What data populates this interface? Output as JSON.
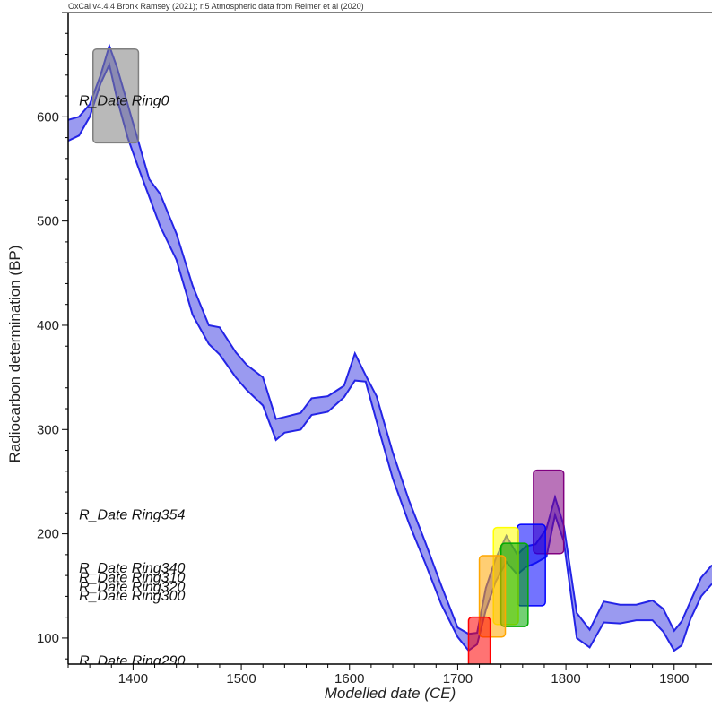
{
  "header": {
    "credit": "OxCal v4.4.4 Bronk Ramsey (2021); r:5 Atmospheric data from Reimer et al (2020)"
  },
  "chart_data": {
    "type": "area",
    "xlabel": "Modelled date (CE)",
    "ylabel": "Radiocarbon determination (BP)",
    "xlim": [
      1340,
      1935
    ],
    "ylim": [
      75,
      700
    ],
    "x_ticks": [
      1400,
      1500,
      1600,
      1700,
      1800,
      1900
    ],
    "y_ticks": [
      100,
      200,
      300,
      400,
      500,
      600
    ],
    "colors": {
      "curve_fill": "#9a9af0",
      "curve_line": "#2424e6"
    },
    "calibration_band": {
      "x": [
        1340,
        1350,
        1360,
        1370,
        1378,
        1385,
        1395,
        1405,
        1415,
        1425,
        1440,
        1455,
        1470,
        1480,
        1495,
        1505,
        1520,
        1532,
        1540,
        1555,
        1565,
        1580,
        1595,
        1605,
        1615,
        1625,
        1640,
        1655,
        1670,
        1685,
        1700,
        1710,
        1718,
        1726,
        1735,
        1745,
        1755,
        1763,
        1772,
        1782,
        1790,
        1798,
        1810,
        1822,
        1835,
        1850,
        1865,
        1880,
        1890,
        1900,
        1907,
        1915,
        1925,
        1935
      ],
      "upper": [
        597,
        600,
        612,
        640,
        668,
        648,
        612,
        576,
        540,
        526,
        488,
        438,
        400,
        398,
        374,
        362,
        350,
        310,
        312,
        316,
        330,
        332,
        342,
        373,
        352,
        332,
        278,
        232,
        192,
        150,
        110,
        104,
        105,
        148,
        176,
        198,
        180,
        188,
        190,
        205,
        235,
        208,
        124,
        108,
        135,
        132,
        132,
        136,
        128,
        107,
        116,
        135,
        158,
        170
      ],
      "lower": [
        577,
        582,
        600,
        632,
        650,
        618,
        580,
        551,
        523,
        495,
        463,
        410,
        382,
        372,
        350,
        338,
        323,
        290,
        297,
        300,
        314,
        317,
        331,
        347,
        346,
        308,
        253,
        210,
        172,
        132,
        101,
        88,
        94,
        127,
        154,
        173,
        161,
        168,
        172,
        178,
        218,
        193,
        100,
        91,
        115,
        114,
        117,
        117,
        106,
        88,
        93,
        118,
        140,
        152
      ]
    },
    "date_boxes": [
      {
        "name": "R_Date Ring0",
        "x": [
          1363,
          1405
        ],
        "y": [
          575,
          665
        ],
        "color": "#808080"
      },
      {
        "name": "R_Date Ring354",
        "x": [
          1770,
          1798
        ],
        "y": [
          181,
          261
        ],
        "color": "#800080"
      },
      {
        "name": "R_Date Ring340",
        "x": [
          1755,
          1781
        ],
        "y": [
          131,
          209
        ],
        "color": "#0000ff"
      },
      {
        "name": "R_Date Ring310",
        "x": [
          1733,
          1756
        ],
        "y": [
          113,
          206
        ],
        "color": "#ffff00"
      },
      {
        "name": "R_Date Ring320",
        "x": [
          1740,
          1765
        ],
        "y": [
          111,
          191
        ],
        "color": "#00aa00"
      },
      {
        "name": "R_Date Ring300",
        "x": [
          1720,
          1744
        ],
        "y": [
          101,
          179
        ],
        "color": "#ffa500"
      },
      {
        "name": "R_Date Ring290",
        "x": [
          1710,
          1730
        ],
        "y": [
          72,
          120
        ],
        "color": "#ff0000"
      }
    ],
    "date_labels": [
      {
        "text": "R_Date Ring0",
        "x": 1350,
        "y": 616
      },
      {
        "text": "R_Date Ring354",
        "x": 1350,
        "y": 219
      },
      {
        "text": "R_Date Ring340",
        "x": 1350,
        "y": 168
      },
      {
        "text": "R_Date Ring310",
        "x": 1350,
        "y": 159
      },
      {
        "text": "R_Date Ring320",
        "x": 1350,
        "y": 150
      },
      {
        "text": "R_Date Ring300",
        "x": 1350,
        "y": 141
      },
      {
        "text": "R_Date Ring290",
        "x": 1350,
        "y": 79
      }
    ]
  }
}
